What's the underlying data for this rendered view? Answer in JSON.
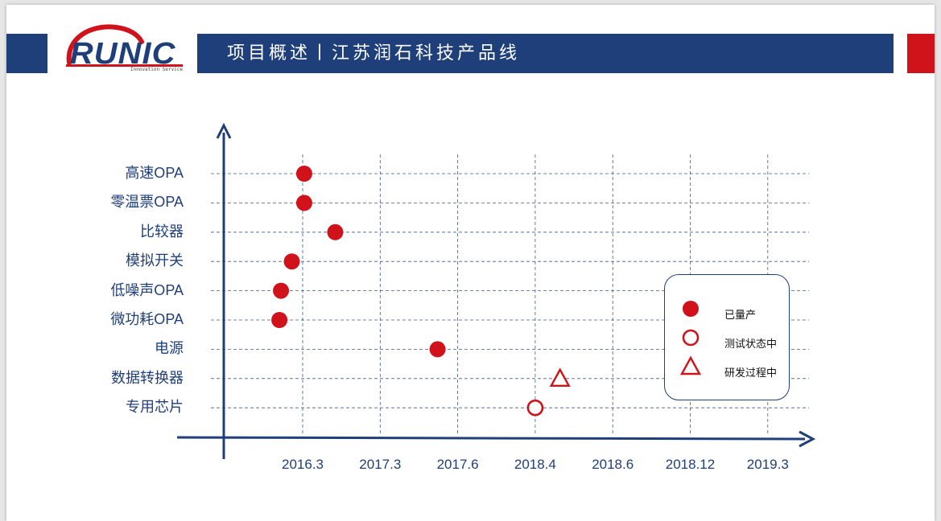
{
  "header": {
    "title": "项目概述丨江苏润石科技产品线",
    "logo_text": "RUNIC",
    "logo_tagline": "Innovation Service"
  },
  "colors": {
    "navy": "#1f3f7a",
    "red": "#d0121b",
    "grid": "#1f3f7a"
  },
  "chart_data": {
    "type": "scatter",
    "x_ticks": [
      "2016.3",
      "2017.3",
      "2017.6",
      "2018.4",
      "2018.6",
      "2018.12",
      "2019.3"
    ],
    "categories": [
      "高速OPA",
      "零温票OPA",
      "比较器",
      "模拟开关",
      "低噪声OPA",
      "微功耗OPA",
      "电源",
      "数据转换器",
      "专用芯片"
    ],
    "points": [
      {
        "category": "高速OPA",
        "x": 0.02,
        "status": "mass_production"
      },
      {
        "category": "零温票OPA",
        "x": 0.02,
        "status": "mass_production"
      },
      {
        "category": "比较器",
        "x": 0.42,
        "status": "mass_production"
      },
      {
        "category": "模拟开关",
        "x": -0.14,
        "status": "mass_production"
      },
      {
        "category": "低噪声OPA",
        "x": -0.28,
        "status": "mass_production"
      },
      {
        "category": "微功耗OPA",
        "x": -0.3,
        "status": "mass_production"
      },
      {
        "category": "电源",
        "x": 1.74,
        "status": "mass_production"
      },
      {
        "category": "数据转换器",
        "x": 3.32,
        "status": "in_development"
      },
      {
        "category": "专用芯片",
        "x": 3.0,
        "status": "testing"
      }
    ],
    "x_note": "x is measured in tick steps from the first tick (2016.3); ticks are evenly spaced",
    "legend": [
      {
        "key": "mass_production",
        "label": "已量产",
        "marker": "filled-circle"
      },
      {
        "key": "testing",
        "label": "测试状态中",
        "marker": "hollow-circle"
      },
      {
        "key": "in_development",
        "label": "研发过程中",
        "marker": "hollow-triangle"
      }
    ],
    "grid": true,
    "legend_position": "right"
  }
}
